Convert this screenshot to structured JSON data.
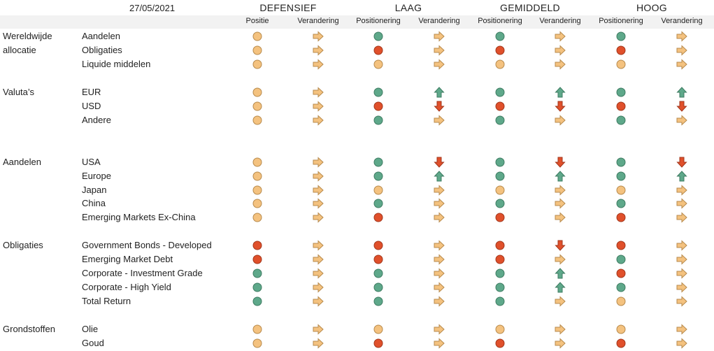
{
  "date": "27/05/2021",
  "profiles": [
    "DEFENSIEF",
    "LAAG",
    "GEMIDDELD",
    "HOOG"
  ],
  "subheaders": [
    "Positie",
    "Verandering",
    "Positionering",
    "Verandering",
    "Positionering",
    "Verandering",
    "Positionering",
    "Verandering"
  ],
  "legend_colors": {
    "neutral": "#f4c27f",
    "positive": "#5ea88a",
    "negative": "#e0502b"
  },
  "groups": [
    {
      "label": "Wereldwijde allocatie",
      "rows": [
        {
          "asset": "Aandelen",
          "cells": [
            [
              "orange",
              "right"
            ],
            [
              "green",
              "right"
            ],
            [
              "green",
              "right"
            ],
            [
              "green",
              "right"
            ]
          ]
        },
        {
          "asset": "Obligaties",
          "cells": [
            [
              "orange",
              "right"
            ],
            [
              "red",
              "right"
            ],
            [
              "red",
              "right"
            ],
            [
              "red",
              "right"
            ]
          ]
        },
        {
          "asset": "Liquide middelen",
          "cells": [
            [
              "orange",
              "right"
            ],
            [
              "orange",
              "right"
            ],
            [
              "orange",
              "right"
            ],
            [
              "orange",
              "right"
            ]
          ]
        }
      ]
    },
    {
      "label": "Valuta’s",
      "rows": [
        {
          "asset": "EUR",
          "cells": [
            [
              "orange",
              "right"
            ],
            [
              "green",
              "up"
            ],
            [
              "green",
              "up"
            ],
            [
              "green",
              "up"
            ]
          ]
        },
        {
          "asset": "USD",
          "cells": [
            [
              "orange",
              "right"
            ],
            [
              "red",
              "down"
            ],
            [
              "red",
              "down"
            ],
            [
              "red",
              "down"
            ]
          ]
        },
        {
          "asset": "Andere",
          "cells": [
            [
              "orange",
              "right"
            ],
            [
              "green",
              "right"
            ],
            [
              "green",
              "right"
            ],
            [
              "green",
              "right"
            ]
          ]
        }
      ]
    },
    {
      "label": "Aandelen",
      "rows": [
        {
          "asset": "USA",
          "cells": [
            [
              "orange",
              "right"
            ],
            [
              "green",
              "down"
            ],
            [
              "green",
              "down"
            ],
            [
              "green",
              "down"
            ]
          ]
        },
        {
          "asset": "Europe",
          "cells": [
            [
              "orange",
              "right"
            ],
            [
              "green",
              "up"
            ],
            [
              "green",
              "up"
            ],
            [
              "green",
              "up"
            ]
          ]
        },
        {
          "asset": "Japan",
          "cells": [
            [
              "orange",
              "right"
            ],
            [
              "orange",
              "right"
            ],
            [
              "orange",
              "right"
            ],
            [
              "orange",
              "right"
            ]
          ]
        },
        {
          "asset": "China",
          "cells": [
            [
              "orange",
              "right"
            ],
            [
              "green",
              "right"
            ],
            [
              "green",
              "right"
            ],
            [
              "green",
              "right"
            ]
          ]
        },
        {
          "asset": "Emerging Markets Ex-China",
          "cells": [
            [
              "orange",
              "right"
            ],
            [
              "red",
              "right"
            ],
            [
              "red",
              "right"
            ],
            [
              "red",
              "right"
            ]
          ]
        }
      ]
    },
    {
      "label": "Obligaties",
      "rows": [
        {
          "asset": "Government Bonds - Developed",
          "cells": [
            [
              "red",
              "right"
            ],
            [
              "red",
              "right"
            ],
            [
              "red",
              "down"
            ],
            [
              "red",
              "right"
            ]
          ]
        },
        {
          "asset": "Emerging Market Debt",
          "cells": [
            [
              "red",
              "right"
            ],
            [
              "red",
              "right"
            ],
            [
              "red",
              "right"
            ],
            [
              "green",
              "right"
            ]
          ]
        },
        {
          "asset": "Corporate - Investment Grade",
          "cells": [
            [
              "green",
              "right"
            ],
            [
              "green",
              "right"
            ],
            [
              "green",
              "up"
            ],
            [
              "red",
              "right"
            ]
          ]
        },
        {
          "asset": "Corporate - High Yield",
          "cells": [
            [
              "green",
              "right"
            ],
            [
              "green",
              "right"
            ],
            [
              "green",
              "up"
            ],
            [
              "green",
              "right"
            ]
          ]
        },
        {
          "asset": "Total Return",
          "cells": [
            [
              "green",
              "right"
            ],
            [
              "green",
              "right"
            ],
            [
              "green",
              "right"
            ],
            [
              "orange",
              "right"
            ]
          ]
        }
      ]
    },
    {
      "label": "Grondstoffen",
      "rows": [
        {
          "asset": "Olie",
          "cells": [
            [
              "orange",
              "right"
            ],
            [
              "orange",
              "right"
            ],
            [
              "orange",
              "right"
            ],
            [
              "orange",
              "right"
            ]
          ]
        },
        {
          "asset": "Goud",
          "cells": [
            [
              "orange",
              "right"
            ],
            [
              "red",
              "right"
            ],
            [
              "red",
              "right"
            ],
            [
              "red",
              "right"
            ]
          ]
        }
      ]
    }
  ]
}
